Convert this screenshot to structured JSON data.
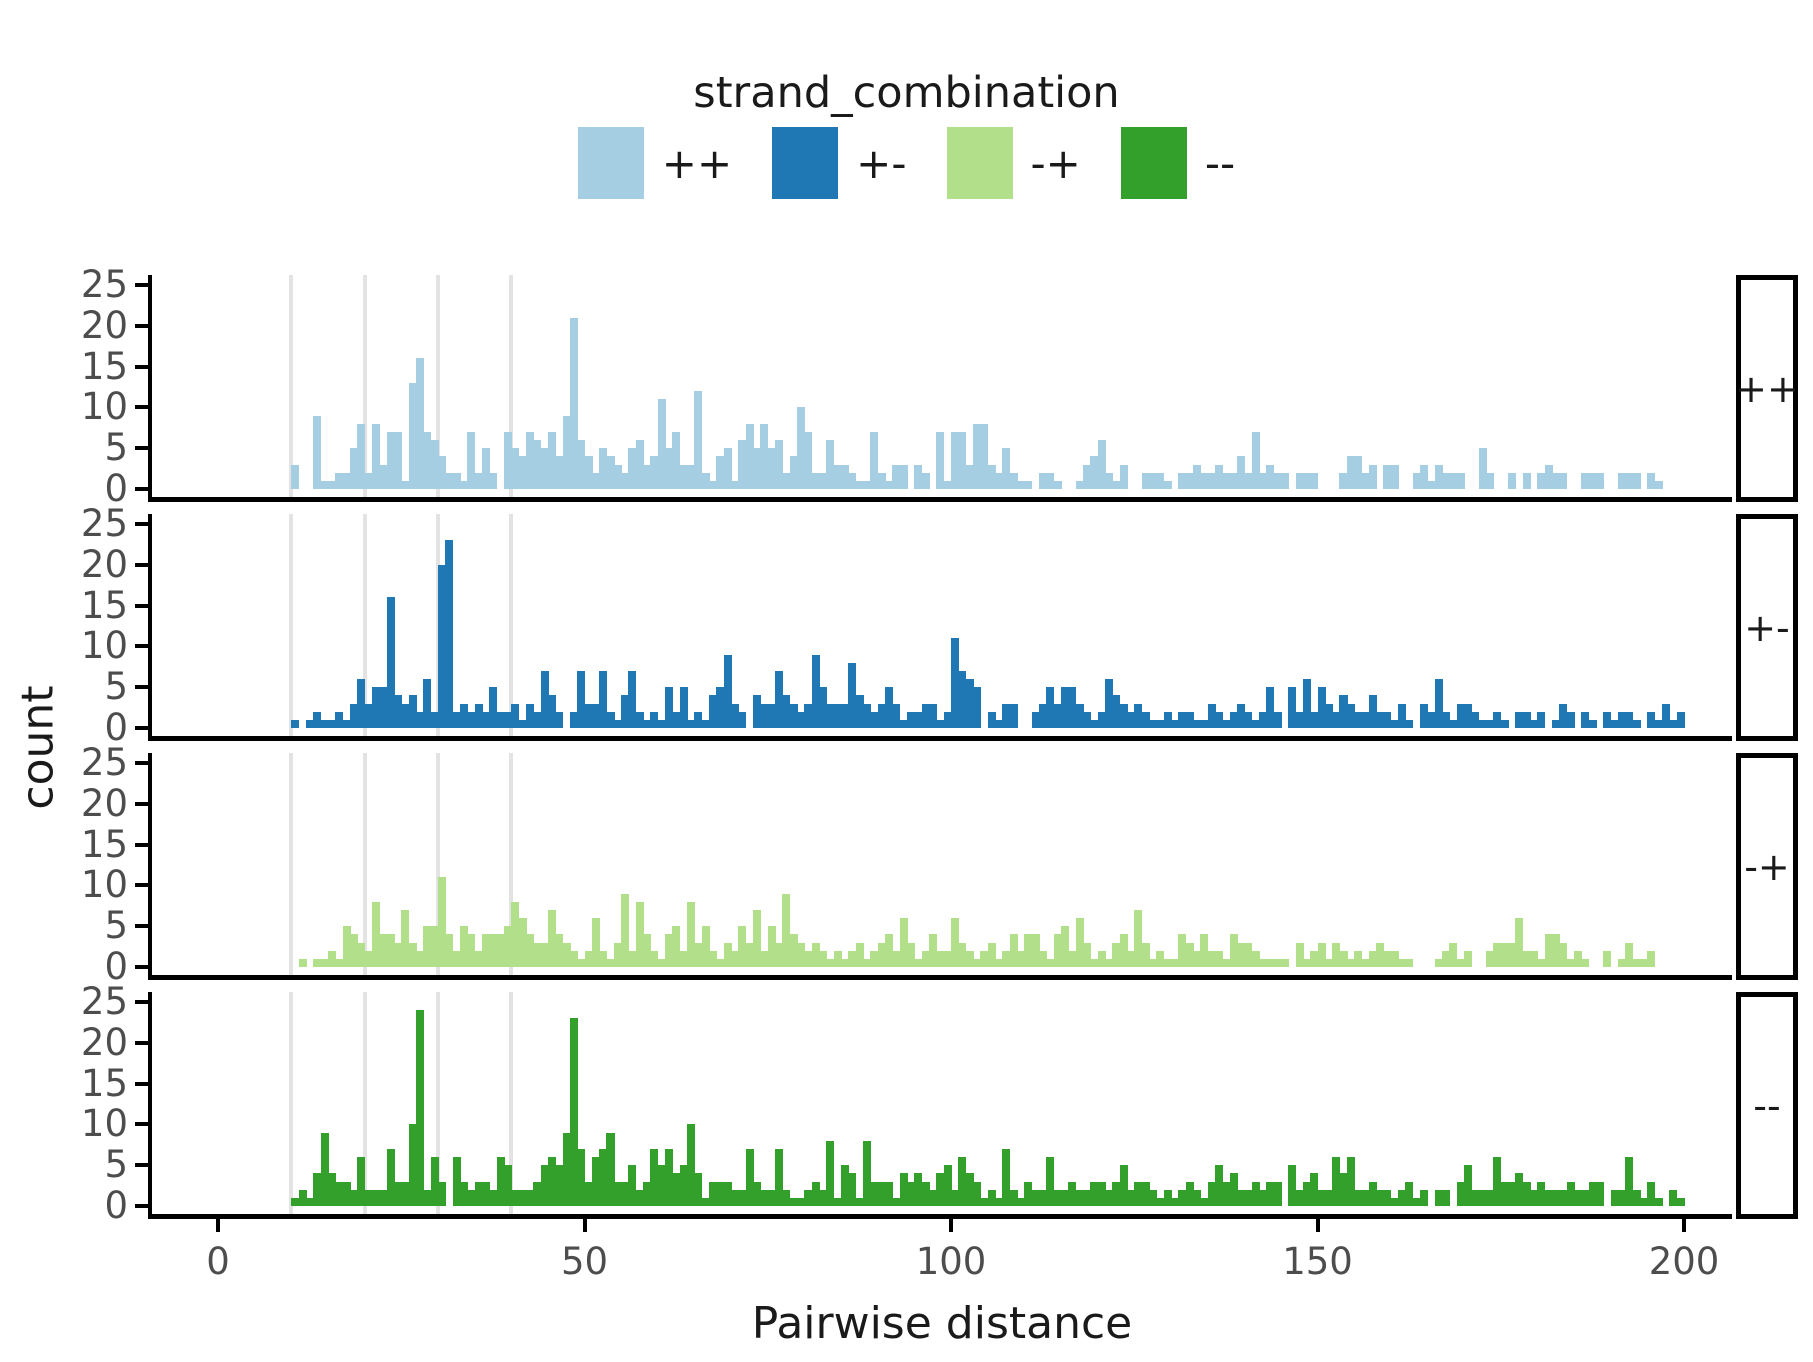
{
  "chart_data": {
    "type": "bar",
    "subtype": "faceted-histogram",
    "legend_title": "strand_combination",
    "xlabel": "Pairwise distance",
    "ylabel": "count",
    "x_ticks": [
      0,
      50,
      100,
      150,
      200
    ],
    "y_ticks": [
      0,
      5,
      10,
      15,
      20,
      25
    ],
    "ylim": [
      0,
      25
    ],
    "xlim": [
      -9,
      207
    ],
    "grid": "vertical-reference-lines-only",
    "vlines_x": [
      10,
      20,
      30,
      40
    ],
    "bin_width": 1,
    "bin_start_x": 10,
    "legend_position": "top-center",
    "facet_strip_side": "right",
    "facets": [
      {
        "label": "++",
        "color": "#a6cee3",
        "counts": [
          3,
          0,
          0,
          9,
          1,
          1,
          2,
          2,
          5,
          8,
          2,
          8,
          3,
          7,
          7,
          1,
          13,
          16,
          7,
          6,
          4,
          2,
          2,
          1,
          7,
          2,
          5,
          2,
          0,
          7,
          5,
          4,
          7,
          6,
          5,
          7,
          4,
          9,
          21,
          6,
          4,
          2,
          5,
          4,
          3,
          2,
          5,
          6,
          3,
          4,
          11,
          5,
          7,
          3,
          3,
          12,
          2,
          1,
          4,
          5,
          1,
          6,
          8,
          5,
          8,
          5,
          6,
          2,
          4,
          10,
          7,
          2,
          2,
          6,
          3,
          3,
          2,
          1,
          1,
          7,
          2,
          1,
          3,
          3,
          0,
          3,
          2,
          0,
          7,
          1,
          7,
          7,
          3,
          8,
          8,
          3,
          2,
          5,
          2,
          1,
          1,
          0,
          2,
          2,
          1,
          0,
          0,
          1,
          3,
          4,
          6,
          2,
          1,
          3,
          0,
          0,
          2,
          2,
          2,
          1,
          0,
          2,
          2,
          3,
          2,
          2,
          3,
          2,
          2,
          4,
          2,
          7,
          2,
          3,
          2,
          2,
          0,
          2,
          2,
          2,
          0,
          0,
          0,
          2,
          4,
          4,
          2,
          3,
          0,
          3,
          3,
          0,
          0,
          2,
          3,
          1,
          3,
          2,
          2,
          2,
          0,
          0,
          5,
          2,
          0,
          0,
          2,
          0,
          2,
          0,
          2,
          3,
          2,
          2,
          0,
          0,
          2,
          2,
          2,
          0,
          0,
          2,
          2,
          2,
          0,
          2,
          1,
          0,
          0,
          0
        ]
      },
      {
        "label": "+-",
        "color": "#1f78b4",
        "counts": [
          1,
          0,
          1,
          2,
          1,
          1,
          2,
          1,
          3,
          6,
          3,
          5,
          5,
          16,
          4,
          3,
          4,
          2,
          6,
          2,
          20,
          23,
          2,
          3,
          2,
          3,
          2,
          5,
          2,
          2,
          3,
          1,
          3,
          2,
          7,
          4,
          2,
          0,
          2,
          7,
          3,
          3,
          7,
          2,
          1,
          4,
          7,
          2,
          1,
          2,
          1,
          5,
          2,
          5,
          1,
          2,
          1,
          4,
          5,
          9,
          3,
          2,
          0,
          4,
          3,
          3,
          7,
          4,
          3,
          2,
          3,
          9,
          5,
          3,
          3,
          3,
          8,
          4,
          3,
          2,
          3,
          5,
          3,
          1,
          2,
          2,
          3,
          3,
          1,
          2,
          11,
          7,
          6,
          5,
          0,
          2,
          1,
          3,
          3,
          0,
          0,
          2,
          3,
          5,
          3,
          5,
          5,
          3,
          2,
          1,
          2,
          6,
          4,
          3,
          2,
          3,
          2,
          1,
          1,
          2,
          1,
          2,
          2,
          1,
          1,
          3,
          2,
          1,
          2,
          3,
          2,
          1,
          2,
          5,
          2,
          0,
          5,
          2,
          6,
          2,
          5,
          3,
          2,
          4,
          3,
          2,
          2,
          4,
          2,
          2,
          1,
          3,
          1,
          0,
          3,
          2,
          6,
          2,
          1,
          3,
          3,
          2,
          1,
          1,
          2,
          1,
          0,
          2,
          2,
          1,
          2,
          0,
          1,
          3,
          2,
          0,
          2,
          1,
          0,
          2,
          1,
          2,
          2,
          1,
          0,
          2,
          1,
          3,
          1,
          2
        ]
      },
      {
        "label": "-+",
        "color": "#b2df8a",
        "counts": [
          0,
          1,
          0,
          1,
          1,
          2,
          1,
          5,
          4,
          3,
          2,
          8,
          4,
          4,
          3,
          7,
          3,
          2,
          5,
          5,
          11,
          4,
          2,
          5,
          4,
          2,
          4,
          4,
          4,
          5,
          8,
          6,
          4,
          3,
          3,
          7,
          4,
          3,
          2,
          1,
          2,
          6,
          2,
          1,
          3,
          9,
          2,
          8,
          4,
          2,
          1,
          4,
          5,
          2,
          8,
          3,
          5,
          2,
          1,
          3,
          2,
          5,
          3,
          7,
          2,
          5,
          3,
          9,
          4,
          3,
          2,
          3,
          2,
          1,
          2,
          1,
          2,
          3,
          1,
          2,
          3,
          4,
          2,
          6,
          3,
          1,
          2,
          4,
          2,
          2,
          6,
          3,
          2,
          1,
          2,
          3,
          1,
          2,
          4,
          2,
          4,
          4,
          2,
          1,
          4,
          5,
          2,
          6,
          3,
          1,
          2,
          1,
          3,
          4,
          2,
          7,
          3,
          1,
          2,
          1,
          1,
          4,
          3,
          2,
          4,
          2,
          2,
          1,
          4,
          3,
          3,
          2,
          1,
          1,
          1,
          1,
          0,
          3,
          1,
          2,
          3,
          1,
          3,
          2,
          1,
          2,
          1,
          2,
          3,
          2,
          2,
          1,
          1,
          0,
          0,
          0,
          1,
          2,
          3,
          1,
          2,
          0,
          0,
          2,
          3,
          3,
          3,
          6,
          2,
          2,
          1,
          4,
          4,
          3,
          1,
          2,
          1,
          0,
          0,
          2,
          0,
          1,
          3,
          1,
          1,
          2,
          0,
          0,
          0,
          0
        ]
      },
      {
        "label": "--",
        "color": "#33a02c",
        "counts": [
          1,
          2,
          1,
          4,
          9,
          4,
          3,
          3,
          2,
          6,
          2,
          2,
          2,
          7,
          3,
          3,
          10,
          24,
          2,
          6,
          3,
          0,
          6,
          3,
          2,
          3,
          3,
          2,
          6,
          5,
          2,
          2,
          2,
          3,
          5,
          6,
          5,
          9,
          23,
          7,
          3,
          6,
          7,
          9,
          3,
          3,
          5,
          2,
          3,
          7,
          5,
          7,
          4,
          5,
          10,
          4,
          1,
          3,
          3,
          3,
          2,
          2,
          7,
          3,
          2,
          2,
          7,
          2,
          1,
          1,
          2,
          3,
          2,
          8,
          1,
          5,
          4,
          1,
          8,
          3,
          3,
          3,
          1,
          4,
          3,
          4,
          3,
          2,
          4,
          5,
          2,
          6,
          4,
          3,
          1,
          2,
          1,
          7,
          2,
          1,
          3,
          2,
          2,
          6,
          2,
          2,
          3,
          2,
          2,
          3,
          3,
          2,
          3,
          5,
          2,
          3,
          3,
          2,
          1,
          2,
          1,
          2,
          3,
          2,
          1,
          3,
          5,
          3,
          4,
          2,
          2,
          3,
          2,
          3,
          3,
          0,
          5,
          2,
          3,
          4,
          2,
          2,
          6,
          4,
          6,
          2,
          2,
          3,
          2,
          2,
          1,
          2,
          3,
          1,
          2,
          0,
          2,
          2,
          0,
          3,
          5,
          2,
          2,
          2,
          6,
          3,
          3,
          4,
          3,
          2,
          3,
          2,
          2,
          2,
          3,
          2,
          2,
          3,
          3,
          0,
          2,
          2,
          6,
          2,
          1,
          3,
          1,
          0,
          2,
          1
        ]
      }
    ],
    "legend": {
      "items": [
        {
          "label": "++",
          "color": "#a6cee3"
        },
        {
          "label": "+-",
          "color": "#1f78b4"
        },
        {
          "label": "-+",
          "color": "#b2df8a"
        },
        {
          "label": "--",
          "color": "#33a02c"
        }
      ]
    }
  }
}
